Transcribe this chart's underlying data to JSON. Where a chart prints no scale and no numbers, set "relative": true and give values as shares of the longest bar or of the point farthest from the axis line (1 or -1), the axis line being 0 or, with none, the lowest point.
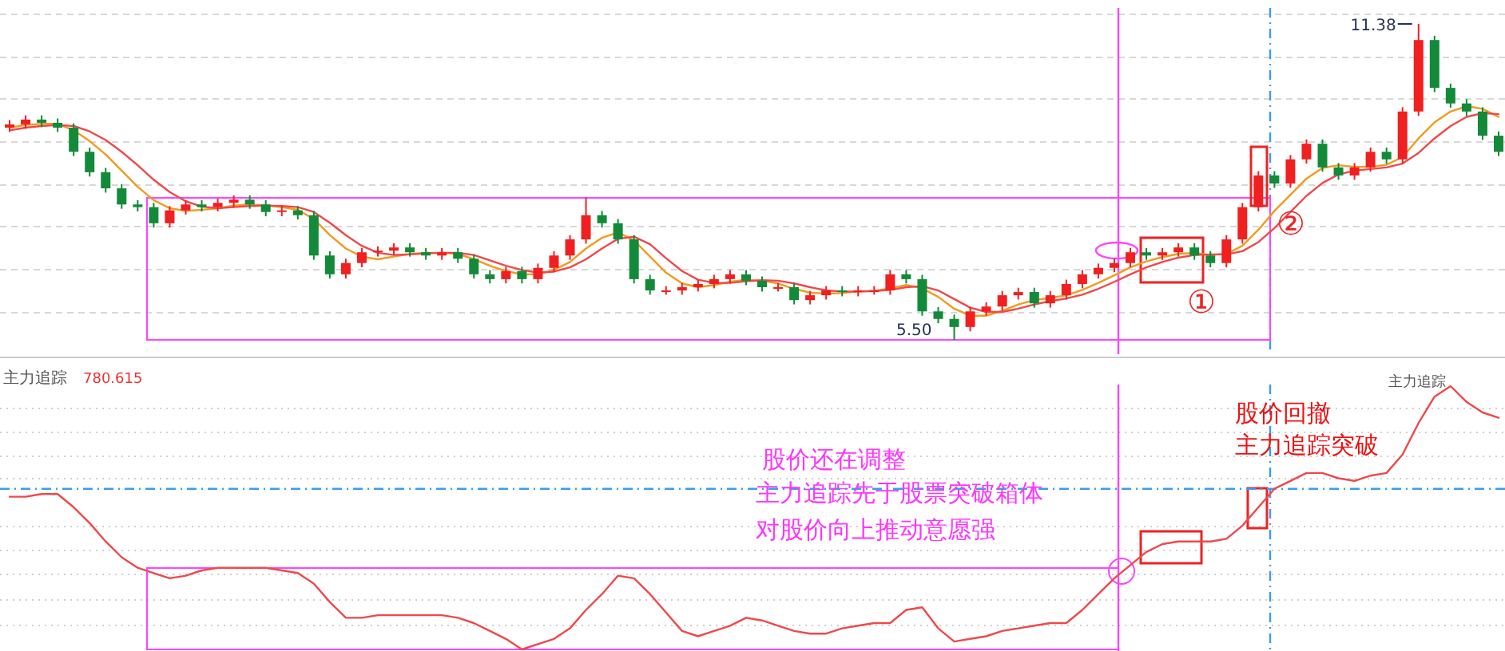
{
  "chart_data": [
    {
      "type": "candlestick",
      "grid": "y",
      "categories": [
        null,
        null,
        null,
        null,
        null,
        null,
        null,
        null,
        null,
        null,
        null,
        null,
        null,
        null,
        null,
        null,
        null,
        null,
        null,
        null,
        null,
        null,
        null,
        null,
        null,
        null,
        null,
        null,
        null,
        null,
        null,
        null,
        null,
        null,
        null,
        null,
        null,
        null,
        null,
        null,
        null,
        null,
        null,
        null,
        null,
        null,
        null,
        null,
        null,
        null,
        null,
        null,
        null,
        null,
        null,
        null,
        null,
        null,
        null,
        null,
        null,
        null,
        null,
        null,
        null,
        null,
        null,
        null,
        null,
        null,
        null,
        null,
        null,
        null,
        null,
        null,
        null,
        null,
        null,
        null,
        null,
        null,
        null,
        null,
        null,
        null,
        null,
        null,
        null,
        null,
        null,
        null,
        null,
        null
      ],
      "ohlc": [
        [
          9.45,
          9.59,
          9.37,
          9.51
        ],
        [
          9.51,
          9.68,
          9.43,
          9.6
        ],
        [
          9.6,
          9.68,
          9.46,
          9.54
        ],
        [
          9.54,
          9.62,
          9.37,
          9.45
        ],
        [
          9.45,
          9.53,
          8.92,
          9.0
        ],
        [
          9.0,
          9.08,
          8.54,
          8.62
        ],
        [
          8.62,
          8.7,
          8.24,
          8.32
        ],
        [
          8.32,
          8.4,
          7.94,
          8.02
        ],
        [
          8.02,
          8.1,
          7.89,
          7.97
        ],
        [
          7.97,
          8.05,
          7.59,
          7.67
        ],
        [
          7.67,
          7.99,
          7.59,
          7.91
        ],
        [
          7.91,
          8.1,
          7.83,
          8.02
        ],
        [
          8.02,
          8.1,
          7.89,
          7.97
        ],
        [
          7.97,
          8.13,
          7.89,
          8.05
        ],
        [
          8.05,
          8.19,
          7.97,
          8.11
        ],
        [
          8.11,
          8.19,
          7.94,
          8.02
        ],
        [
          8.02,
          8.1,
          7.8,
          7.88
        ],
        [
          7.88,
          7.99,
          7.8,
          7.91
        ],
        [
          7.91,
          7.99,
          7.74,
          7.82
        ],
        [
          7.82,
          7.9,
          6.99,
          7.07
        ],
        [
          7.07,
          7.15,
          6.64,
          6.72
        ],
        [
          6.72,
          7.01,
          6.64,
          6.93
        ],
        [
          6.93,
          7.21,
          6.85,
          7.13
        ],
        [
          7.13,
          7.24,
          7.05,
          7.16
        ],
        [
          7.16,
          7.3,
          7.08,
          7.22
        ],
        [
          7.22,
          7.3,
          7.05,
          7.13
        ],
        [
          7.13,
          7.21,
          6.99,
          7.07
        ],
        [
          7.07,
          7.21,
          6.99,
          7.13
        ],
        [
          7.13,
          7.21,
          6.93,
          7.01
        ],
        [
          7.01,
          7.09,
          6.64,
          6.72
        ],
        [
          6.72,
          6.8,
          6.55,
          6.63
        ],
        [
          6.63,
          6.86,
          6.55,
          6.78
        ],
        [
          6.78,
          6.86,
          6.55,
          6.63
        ],
        [
          6.63,
          6.92,
          6.55,
          6.84
        ],
        [
          6.84,
          7.15,
          6.76,
          7.07
        ],
        [
          7.07,
          7.45,
          6.99,
          7.37
        ],
        [
          7.37,
          8.15,
          7.29,
          7.82
        ],
        [
          7.82,
          7.9,
          7.59,
          7.67
        ],
        [
          7.67,
          7.75,
          7.29,
          7.37
        ],
        [
          7.37,
          7.45,
          6.55,
          6.63
        ],
        [
          6.63,
          6.71,
          6.34,
          6.42
        ],
        [
          6.42,
          6.5,
          6.34,
          6.42
        ],
        [
          6.42,
          6.56,
          6.34,
          6.48
        ],
        [
          6.48,
          6.62,
          6.4,
          6.54
        ],
        [
          6.54,
          6.71,
          6.46,
          6.63
        ],
        [
          6.63,
          6.8,
          6.55,
          6.72
        ],
        [
          6.72,
          6.8,
          6.52,
          6.6
        ],
        [
          6.6,
          6.68,
          6.4,
          6.48
        ],
        [
          6.48,
          6.56,
          6.4,
          6.48
        ],
        [
          6.48,
          6.56,
          6.16,
          6.24
        ],
        [
          6.24,
          6.41,
          6.16,
          6.33
        ],
        [
          6.33,
          6.5,
          6.25,
          6.42
        ],
        [
          6.42,
          6.5,
          6.31,
          6.39
        ],
        [
          6.39,
          6.5,
          6.31,
          6.42
        ],
        [
          6.42,
          6.5,
          6.34,
          6.42
        ],
        [
          6.42,
          6.8,
          6.34,
          6.72
        ],
        [
          6.72,
          6.8,
          6.55,
          6.63
        ],
        [
          6.63,
          6.71,
          5.95,
          6.03
        ],
        [
          6.03,
          6.11,
          5.81,
          5.89
        ],
        [
          5.89,
          5.97,
          5.5,
          5.74
        ],
        [
          5.74,
          6.11,
          5.66,
          6.03
        ],
        [
          6.03,
          6.2,
          5.95,
          6.12
        ],
        [
          6.12,
          6.41,
          6.04,
          6.33
        ],
        [
          6.33,
          6.47,
          6.25,
          6.39
        ],
        [
          6.39,
          6.47,
          6.1,
          6.18
        ],
        [
          6.18,
          6.41,
          6.1,
          6.33
        ],
        [
          6.33,
          6.62,
          6.25,
          6.54
        ],
        [
          6.54,
          6.8,
          6.46,
          6.72
        ],
        [
          6.72,
          6.92,
          6.64,
          6.84
        ],
        [
          6.84,
          7.01,
          6.76,
          6.93
        ],
        [
          6.93,
          7.21,
          6.85,
          7.13
        ],
        [
          7.13,
          7.21,
          6.99,
          7.07
        ],
        [
          7.07,
          7.21,
          6.99,
          7.13
        ],
        [
          7.13,
          7.3,
          7.05,
          7.22
        ],
        [
          7.22,
          7.3,
          6.99,
          7.07
        ],
        [
          7.07,
          7.15,
          6.85,
          6.93
        ],
        [
          6.93,
          7.45,
          6.85,
          7.37
        ],
        [
          7.37,
          8.05,
          7.29,
          7.97
        ],
        [
          7.97,
          8.64,
          7.89,
          8.56
        ],
        [
          8.56,
          8.64,
          8.33,
          8.41
        ],
        [
          8.41,
          8.94,
          8.33,
          8.86
        ],
        [
          8.86,
          9.23,
          8.78,
          9.15
        ],
        [
          9.15,
          9.23,
          8.63,
          8.71
        ],
        [
          8.71,
          8.79,
          8.48,
          8.56
        ],
        [
          8.56,
          8.79,
          8.48,
          8.71
        ],
        [
          8.71,
          9.08,
          8.63,
          9.0
        ],
        [
          9.0,
          9.08,
          8.78,
          8.86
        ],
        [
          8.86,
          9.83,
          8.78,
          9.75
        ],
        [
          9.75,
          11.38,
          9.67,
          11.08
        ],
        [
          11.08,
          11.16,
          10.11,
          10.19
        ],
        [
          10.19,
          10.27,
          9.82,
          9.9
        ],
        [
          9.9,
          9.98,
          9.67,
          9.75
        ],
        [
          9.75,
          9.83,
          9.22,
          9.3
        ],
        [
          9.3,
          9.38,
          8.92,
          9.0
        ]
      ],
      "series": [
        {
          "type": "line",
          "color": "#f39a1e",
          "values": [
            9.45,
            9.5,
            9.52,
            9.52,
            9.4,
            9.2,
            8.95,
            8.65,
            8.35,
            8.1,
            7.95,
            7.9,
            7.92,
            7.95,
            8.0,
            8.02,
            8.0,
            7.97,
            7.92,
            7.75,
            7.45,
            7.2,
            7.05,
            7.0,
            7.05,
            7.1,
            7.12,
            7.12,
            7.1,
            7.0,
            6.88,
            6.78,
            6.72,
            6.72,
            6.8,
            6.95,
            7.2,
            7.4,
            7.5,
            7.35,
            7.05,
            6.75,
            6.55,
            6.48,
            6.52,
            6.58,
            6.62,
            6.6,
            6.55,
            6.45,
            6.38,
            6.36,
            6.37,
            6.4,
            6.41,
            6.46,
            6.52,
            6.46,
            6.3,
            6.08,
            5.95,
            5.95,
            6.04,
            6.16,
            6.24,
            6.28,
            6.33,
            6.43,
            6.56,
            6.7,
            6.85,
            6.96,
            7.04,
            7.1,
            7.12,
            7.08,
            7.1,
            7.25,
            7.55,
            7.9,
            8.2,
            8.5,
            8.7,
            8.75,
            8.72,
            8.72,
            8.76,
            8.9,
            9.25,
            9.55,
            9.75,
            9.85,
            9.8,
            9.65
          ]
        },
        {
          "type": "line",
          "color": "#f0484a",
          "values": [
            9.4,
            9.45,
            9.48,
            9.5,
            9.48,
            9.38,
            9.22,
            9.0,
            8.75,
            8.48,
            8.25,
            8.08,
            7.98,
            7.95,
            7.97,
            7.99,
            8.0,
            7.99,
            7.97,
            7.88,
            7.68,
            7.45,
            7.25,
            7.12,
            7.08,
            7.09,
            7.11,
            7.12,
            7.12,
            7.08,
            6.98,
            6.88,
            6.8,
            6.75,
            6.77,
            6.85,
            7.0,
            7.2,
            7.38,
            7.42,
            7.28,
            7.02,
            6.78,
            6.62,
            6.56,
            6.56,
            6.59,
            6.61,
            6.6,
            6.55,
            6.48,
            6.42,
            6.4,
            6.4,
            6.41,
            6.43,
            6.48,
            6.5,
            6.42,
            6.26,
            6.1,
            6.02,
            6.02,
            6.08,
            6.16,
            6.22,
            6.27,
            6.34,
            6.45,
            6.58,
            6.72,
            6.85,
            6.95,
            7.03,
            7.08,
            7.09,
            7.09,
            7.15,
            7.32,
            7.58,
            7.88,
            8.18,
            8.42,
            8.58,
            8.65,
            8.68,
            8.71,
            8.78,
            8.98,
            9.25,
            9.48,
            9.65,
            9.72,
            9.7
          ]
        }
      ],
      "annotations": [
        "11.38",
        "5.50",
        "①",
        "②"
      ]
    },
    {
      "type": "line",
      "relative": true,
      "grid": "y",
      "title": "主力追踪",
      "subtitle": "780.615",
      "categories": [
        null,
        null,
        null,
        null,
        null,
        null,
        null,
        null,
        null,
        null,
        null,
        null,
        null,
        null,
        null,
        null,
        null,
        null,
        null,
        null,
        null,
        null,
        null,
        null,
        null,
        null,
        null,
        null,
        null,
        null,
        null,
        null,
        null,
        null,
        null,
        null,
        null,
        null,
        null,
        null,
        null,
        null,
        null,
        null,
        null,
        null,
        null,
        null,
        null,
        null,
        null,
        null,
        null,
        null,
        null,
        null,
        null,
        null,
        null,
        null,
        null,
        null,
        null,
        null,
        null,
        null,
        null,
        null,
        null,
        null,
        null,
        null,
        null,
        null,
        null,
        null,
        null,
        null,
        null,
        null,
        null,
        null,
        null,
        null,
        null,
        null,
        null,
        null,
        null,
        null,
        null,
        null,
        null,
        null
      ],
      "series": [
        {
          "color": "#f0484a",
          "values": [
            0.58,
            0.58,
            0.59,
            0.59,
            0.54,
            0.48,
            0.41,
            0.35,
            0.31,
            0.29,
            0.27,
            0.28,
            0.3,
            0.31,
            0.31,
            0.31,
            0.31,
            0.3,
            0.29,
            0.25,
            0.18,
            0.12,
            0.12,
            0.13,
            0.13,
            0.13,
            0.13,
            0.13,
            0.12,
            0.1,
            0.07,
            0.04,
            0.0,
            0.02,
            0.04,
            0.08,
            0.15,
            0.21,
            0.28,
            0.27,
            0.21,
            0.14,
            0.07,
            0.05,
            0.07,
            0.09,
            0.12,
            0.11,
            0.09,
            0.07,
            0.06,
            0.06,
            0.08,
            0.09,
            0.1,
            0.1,
            0.15,
            0.16,
            0.08,
            0.03,
            0.04,
            0.05,
            0.07,
            0.08,
            0.09,
            0.1,
            0.1,
            0.15,
            0.21,
            0.27,
            0.32,
            0.37,
            0.4,
            0.41,
            0.41,
            0.41,
            0.42,
            0.47,
            0.54,
            0.61,
            0.64,
            0.67,
            0.67,
            0.65,
            0.64,
            0.66,
            0.67,
            0.74,
            0.86,
            0.96,
            1.0,
            0.94,
            0.9,
            0.88
          ]
        }
      ],
      "ref_lines": [
        {
          "axis": "y",
          "value": 0.61,
          "color": "#3a9df0",
          "line_style": "dashed"
        }
      ],
      "annotations": [
        "主力追踪",
        "股价还在调整",
        "主力追踪先于股票突破箱体",
        "对股价向上推动意愿强",
        "股价回撤",
        "主力追踪突破"
      ]
    }
  ]
}
